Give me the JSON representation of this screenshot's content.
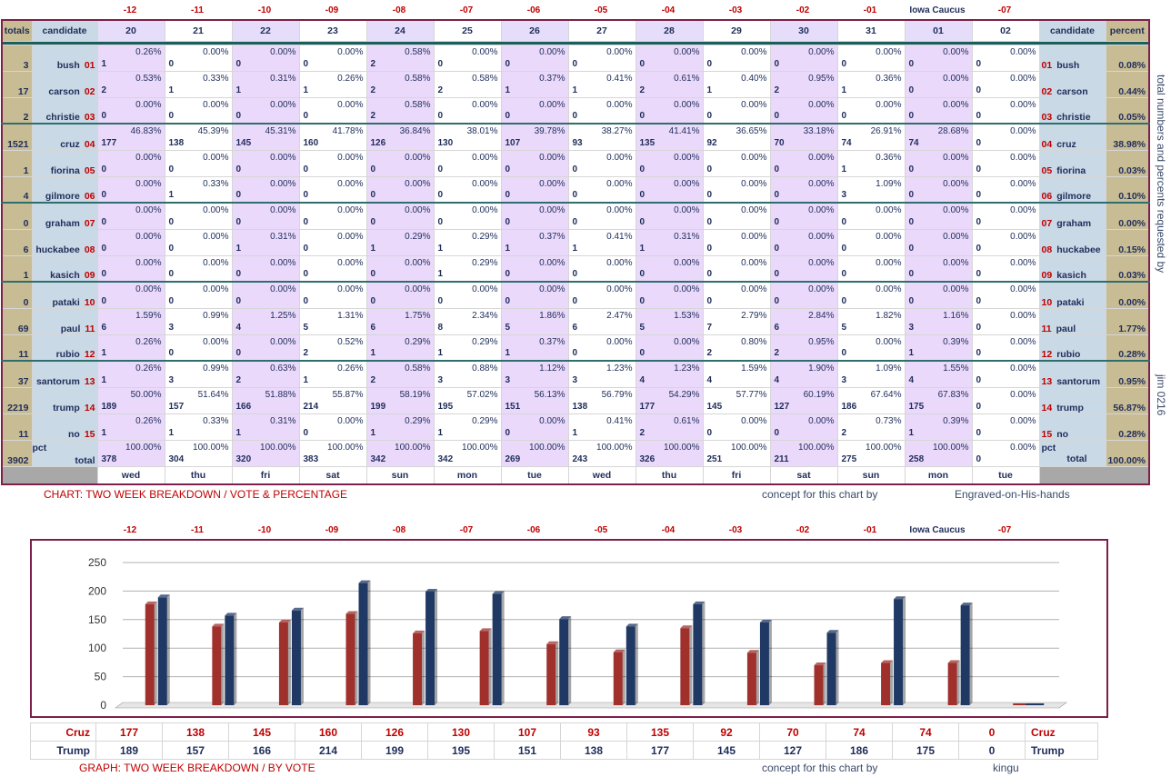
{
  "day_offsets": [
    "-12",
    "-11",
    "-10",
    "-09",
    "-08",
    "-07",
    "-06",
    "-05",
    "-04",
    "-03",
    "-02",
    "-01",
    "Iowa Caucus",
    "-07"
  ],
  "header": {
    "totals": "totals",
    "candidate": "candidate",
    "percent": "percent",
    "dates": [
      "20",
      "21",
      "22",
      "23",
      "24",
      "25",
      "26",
      "27",
      "28",
      "29",
      "30",
      "31",
      "01",
      "02"
    ]
  },
  "weekdays": [
    "wed",
    "thu",
    "fri",
    "sat",
    "sun",
    "mon",
    "tue",
    "wed",
    "thu",
    "fri",
    "sat",
    "sun",
    "mon",
    "tue"
  ],
  "rows": [
    {
      "total": "3",
      "name": "bush",
      "num": "01",
      "pct": "0.08%",
      "cells": [
        [
          "0.26%",
          "1"
        ],
        [
          "0.00%",
          "0"
        ],
        [
          "0.00%",
          "0"
        ],
        [
          "0.00%",
          "0"
        ],
        [
          "0.58%",
          "2"
        ],
        [
          "0.00%",
          "0"
        ],
        [
          "0.00%",
          "0"
        ],
        [
          "0.00%",
          "0"
        ],
        [
          "0.00%",
          "0"
        ],
        [
          "0.00%",
          "0"
        ],
        [
          "0.00%",
          "0"
        ],
        [
          "0.00%",
          "0"
        ],
        [
          "0.00%",
          "0"
        ],
        [
          "0.00%",
          "0"
        ]
      ]
    },
    {
      "total": "17",
      "name": "carson",
      "num": "02",
      "pct": "0.44%",
      "cells": [
        [
          "0.53%",
          "2"
        ],
        [
          "0.33%",
          "1"
        ],
        [
          "0.31%",
          "1"
        ],
        [
          "0.26%",
          "1"
        ],
        [
          "0.58%",
          "2"
        ],
        [
          "0.58%",
          "2"
        ],
        [
          "0.37%",
          "1"
        ],
        [
          "0.41%",
          "1"
        ],
        [
          "0.61%",
          "2"
        ],
        [
          "0.40%",
          "1"
        ],
        [
          "0.95%",
          "2"
        ],
        [
          "0.36%",
          "1"
        ],
        [
          "0.00%",
          "0"
        ],
        [
          "0.00%",
          "0"
        ]
      ]
    },
    {
      "total": "2",
      "name": "christie",
      "num": "03",
      "pct": "0.05%",
      "cells": [
        [
          "0.00%",
          "0"
        ],
        [
          "0.00%",
          "0"
        ],
        [
          "0.00%",
          "0"
        ],
        [
          "0.00%",
          "0"
        ],
        [
          "0.58%",
          "2"
        ],
        [
          "0.00%",
          "0"
        ],
        [
          "0.00%",
          "0"
        ],
        [
          "0.00%",
          "0"
        ],
        [
          "0.00%",
          "0"
        ],
        [
          "0.00%",
          "0"
        ],
        [
          "0.00%",
          "0"
        ],
        [
          "0.00%",
          "0"
        ],
        [
          "0.00%",
          "0"
        ],
        [
          "0.00%",
          "0"
        ]
      ]
    },
    {
      "total": "1521",
      "name": "cruz",
      "num": "04",
      "pct": "38.98%",
      "cells": [
        [
          "46.83%",
          "177"
        ],
        [
          "45.39%",
          "138"
        ],
        [
          "45.31%",
          "145"
        ],
        [
          "41.78%",
          "160"
        ],
        [
          "36.84%",
          "126"
        ],
        [
          "38.01%",
          "130"
        ],
        [
          "39.78%",
          "107"
        ],
        [
          "38.27%",
          "93"
        ],
        [
          "41.41%",
          "135"
        ],
        [
          "36.65%",
          "92"
        ],
        [
          "33.18%",
          "70"
        ],
        [
          "26.91%",
          "74"
        ],
        [
          "28.68%",
          "74"
        ],
        [
          "0.00%",
          "0"
        ]
      ]
    },
    {
      "total": "1",
      "name": "fiorina",
      "num": "05",
      "pct": "0.03%",
      "cells": [
        [
          "0.00%",
          "0"
        ],
        [
          "0.00%",
          "0"
        ],
        [
          "0.00%",
          "0"
        ],
        [
          "0.00%",
          "0"
        ],
        [
          "0.00%",
          "0"
        ],
        [
          "0.00%",
          "0"
        ],
        [
          "0.00%",
          "0"
        ],
        [
          "0.00%",
          "0"
        ],
        [
          "0.00%",
          "0"
        ],
        [
          "0.00%",
          "0"
        ],
        [
          "0.00%",
          "0"
        ],
        [
          "0.36%",
          "1"
        ],
        [
          "0.00%",
          "0"
        ],
        [
          "0.00%",
          "0"
        ]
      ]
    },
    {
      "total": "4",
      "name": "gilmore",
      "num": "06",
      "pct": "0.10%",
      "cells": [
        [
          "0.00%",
          "0"
        ],
        [
          "0.33%",
          "1"
        ],
        [
          "0.00%",
          "0"
        ],
        [
          "0.00%",
          "0"
        ],
        [
          "0.00%",
          "0"
        ],
        [
          "0.00%",
          "0"
        ],
        [
          "0.00%",
          "0"
        ],
        [
          "0.00%",
          "0"
        ],
        [
          "0.00%",
          "0"
        ],
        [
          "0.00%",
          "0"
        ],
        [
          "0.00%",
          "0"
        ],
        [
          "1.09%",
          "3"
        ],
        [
          "0.00%",
          "0"
        ],
        [
          "0.00%",
          "0"
        ]
      ]
    },
    {
      "total": "0",
      "name": "graham",
      "num": "07",
      "pct": "0.00%",
      "cells": [
        [
          "0.00%",
          "0"
        ],
        [
          "0.00%",
          "0"
        ],
        [
          "0.00%",
          "0"
        ],
        [
          "0.00%",
          "0"
        ],
        [
          "0.00%",
          "0"
        ],
        [
          "0.00%",
          "0"
        ],
        [
          "0.00%",
          "0"
        ],
        [
          "0.00%",
          "0"
        ],
        [
          "0.00%",
          "0"
        ],
        [
          "0.00%",
          "0"
        ],
        [
          "0.00%",
          "0"
        ],
        [
          "0.00%",
          "0"
        ],
        [
          "0.00%",
          "0"
        ],
        [
          "0.00%",
          "0"
        ]
      ]
    },
    {
      "total": "6",
      "name": "huckabee",
      "num": "08",
      "pct": "0.15%",
      "cells": [
        [
          "0.00%",
          "0"
        ],
        [
          "0.00%",
          "0"
        ],
        [
          "0.31%",
          "1"
        ],
        [
          "0.00%",
          "0"
        ],
        [
          "0.29%",
          "1"
        ],
        [
          "0.29%",
          "1"
        ],
        [
          "0.37%",
          "1"
        ],
        [
          "0.41%",
          "1"
        ],
        [
          "0.31%",
          "1"
        ],
        [
          "0.00%",
          "0"
        ],
        [
          "0.00%",
          "0"
        ],
        [
          "0.00%",
          "0"
        ],
        [
          "0.00%",
          "0"
        ],
        [
          "0.00%",
          "0"
        ]
      ]
    },
    {
      "total": "1",
      "name": "kasich",
      "num": "09",
      "pct": "0.03%",
      "cells": [
        [
          "0.00%",
          "0"
        ],
        [
          "0.00%",
          "0"
        ],
        [
          "0.00%",
          "0"
        ],
        [
          "0.00%",
          "0"
        ],
        [
          "0.00%",
          "0"
        ],
        [
          "0.29%",
          "1"
        ],
        [
          "0.00%",
          "0"
        ],
        [
          "0.00%",
          "0"
        ],
        [
          "0.00%",
          "0"
        ],
        [
          "0.00%",
          "0"
        ],
        [
          "0.00%",
          "0"
        ],
        [
          "0.00%",
          "0"
        ],
        [
          "0.00%",
          "0"
        ],
        [
          "0.00%",
          "0"
        ]
      ]
    },
    {
      "total": "0",
      "name": "pataki",
      "num": "10",
      "pct": "0.00%",
      "cells": [
        [
          "0.00%",
          "0"
        ],
        [
          "0.00%",
          "0"
        ],
        [
          "0.00%",
          "0"
        ],
        [
          "0.00%",
          "0"
        ],
        [
          "0.00%",
          "0"
        ],
        [
          "0.00%",
          "0"
        ],
        [
          "0.00%",
          "0"
        ],
        [
          "0.00%",
          "0"
        ],
        [
          "0.00%",
          "0"
        ],
        [
          "0.00%",
          "0"
        ],
        [
          "0.00%",
          "0"
        ],
        [
          "0.00%",
          "0"
        ],
        [
          "0.00%",
          "0"
        ],
        [
          "0.00%",
          "0"
        ]
      ]
    },
    {
      "total": "69",
      "name": "paul",
      "num": "11",
      "pct": "1.77%",
      "cells": [
        [
          "1.59%",
          "6"
        ],
        [
          "0.99%",
          "3"
        ],
        [
          "1.25%",
          "4"
        ],
        [
          "1.31%",
          "5"
        ],
        [
          "1.75%",
          "6"
        ],
        [
          "2.34%",
          "8"
        ],
        [
          "1.86%",
          "5"
        ],
        [
          "2.47%",
          "6"
        ],
        [
          "1.53%",
          "5"
        ],
        [
          "2.79%",
          "7"
        ],
        [
          "2.84%",
          "6"
        ],
        [
          "1.82%",
          "5"
        ],
        [
          "1.16%",
          "3"
        ],
        [
          "0.00%",
          "0"
        ]
      ]
    },
    {
      "total": "11",
      "name": "rubio",
      "num": "12",
      "pct": "0.28%",
      "cells": [
        [
          "0.26%",
          "1"
        ],
        [
          "0.00%",
          "0"
        ],
        [
          "0.00%",
          "0"
        ],
        [
          "0.52%",
          "2"
        ],
        [
          "0.29%",
          "1"
        ],
        [
          "0.29%",
          "1"
        ],
        [
          "0.37%",
          "1"
        ],
        [
          "0.00%",
          "0"
        ],
        [
          "0.00%",
          "0"
        ],
        [
          "0.80%",
          "2"
        ],
        [
          "0.95%",
          "2"
        ],
        [
          "0.00%",
          "0"
        ],
        [
          "0.39%",
          "1"
        ],
        [
          "0.00%",
          "0"
        ]
      ]
    },
    {
      "total": "37",
      "name": "santorum",
      "num": "13",
      "pct": "0.95%",
      "cells": [
        [
          "0.26%",
          "1"
        ],
        [
          "0.99%",
          "3"
        ],
        [
          "0.63%",
          "2"
        ],
        [
          "0.26%",
          "1"
        ],
        [
          "0.58%",
          "2"
        ],
        [
          "0.88%",
          "3"
        ],
        [
          "1.12%",
          "3"
        ],
        [
          "1.23%",
          "3"
        ],
        [
          "1.23%",
          "4"
        ],
        [
          "1.59%",
          "4"
        ],
        [
          "1.90%",
          "4"
        ],
        [
          "1.09%",
          "3"
        ],
        [
          "1.55%",
          "4"
        ],
        [
          "0.00%",
          "0"
        ]
      ]
    },
    {
      "total": "2219",
      "name": "trump",
      "num": "14",
      "pct": "56.87%",
      "cells": [
        [
          "50.00%",
          "189"
        ],
        [
          "51.64%",
          "157"
        ],
        [
          "51.88%",
          "166"
        ],
        [
          "55.87%",
          "214"
        ],
        [
          "58.19%",
          "199"
        ],
        [
          "57.02%",
          "195"
        ],
        [
          "56.13%",
          "151"
        ],
        [
          "56.79%",
          "138"
        ],
        [
          "54.29%",
          "177"
        ],
        [
          "57.77%",
          "145"
        ],
        [
          "60.19%",
          "127"
        ],
        [
          "67.64%",
          "186"
        ],
        [
          "67.83%",
          "175"
        ],
        [
          "0.00%",
          "0"
        ]
      ]
    },
    {
      "total": "11",
      "name": "no",
      "num": "15",
      "pct": "0.28%",
      "cells": [
        [
          "0.26%",
          "1"
        ],
        [
          "0.33%",
          "1"
        ],
        [
          "0.31%",
          "1"
        ],
        [
          "0.00%",
          "0"
        ],
        [
          "0.29%",
          "1"
        ],
        [
          "0.29%",
          "1"
        ],
        [
          "0.00%",
          "0"
        ],
        [
          "0.41%",
          "1"
        ],
        [
          "0.61%",
          "2"
        ],
        [
          "0.00%",
          "0"
        ],
        [
          "0.00%",
          "0"
        ],
        [
          "0.73%",
          "2"
        ],
        [
          "0.39%",
          "1"
        ],
        [
          "0.00%",
          "0"
        ]
      ]
    }
  ],
  "total_row": {
    "total": "3902",
    "pct_label": "pct",
    "label": "total",
    "pct": "100.00%",
    "cells": [
      [
        "100.00%",
        "378"
      ],
      [
        "100.00%",
        "304"
      ],
      [
        "100.00%",
        "320"
      ],
      [
        "100.00%",
        "383"
      ],
      [
        "100.00%",
        "342"
      ],
      [
        "100.00%",
        "342"
      ],
      [
        "100.00%",
        "269"
      ],
      [
        "100.00%",
        "243"
      ],
      [
        "100.00%",
        "326"
      ],
      [
        "100.00%",
        "251"
      ],
      [
        "100.00%",
        "211"
      ],
      [
        "100.00%",
        "275"
      ],
      [
        "100.00%",
        "258"
      ],
      [
        "0.00%",
        "0"
      ]
    ]
  },
  "captions": {
    "chart": "CHART: TWO WEEK BREAKDOWN / VOTE & PERCENTAGE",
    "chart_credit": "concept for this chart by",
    "chart_credit_name": "Engraved-on-His-hands",
    "graph": "GRAPH: TWO WEEK BREAKDOWN / BY VOTE",
    "graph_credit": "concept for this chart by",
    "graph_credit_name": "kingu",
    "side_note": "total numbers and percents requested by",
    "side_sig": "jim 0216"
  },
  "colors": {
    "cruz": "#a0302c",
    "trump": "#1f3864",
    "grid": "#b0b0b0"
  },
  "chart_data": {
    "type": "bar",
    "categories": [
      "-12",
      "-11",
      "-10",
      "-09",
      "-08",
      "-07",
      "-06",
      "-05",
      "-04",
      "-03",
      "-02",
      "-01",
      "Iowa Caucus",
      "-07"
    ],
    "series": [
      {
        "name": "Cruz",
        "values": [
          177,
          138,
          145,
          160,
          126,
          130,
          107,
          93,
          135,
          92,
          70,
          74,
          74,
          0
        ]
      },
      {
        "name": "Trump",
        "values": [
          189,
          157,
          166,
          214,
          199,
          195,
          151,
          138,
          177,
          145,
          127,
          186,
          175,
          0
        ]
      }
    ],
    "yticks": [
      "0",
      "50",
      "100",
      "150",
      "200",
      "250"
    ],
    "ylim": [
      0,
      250
    ],
    "grid": true
  }
}
